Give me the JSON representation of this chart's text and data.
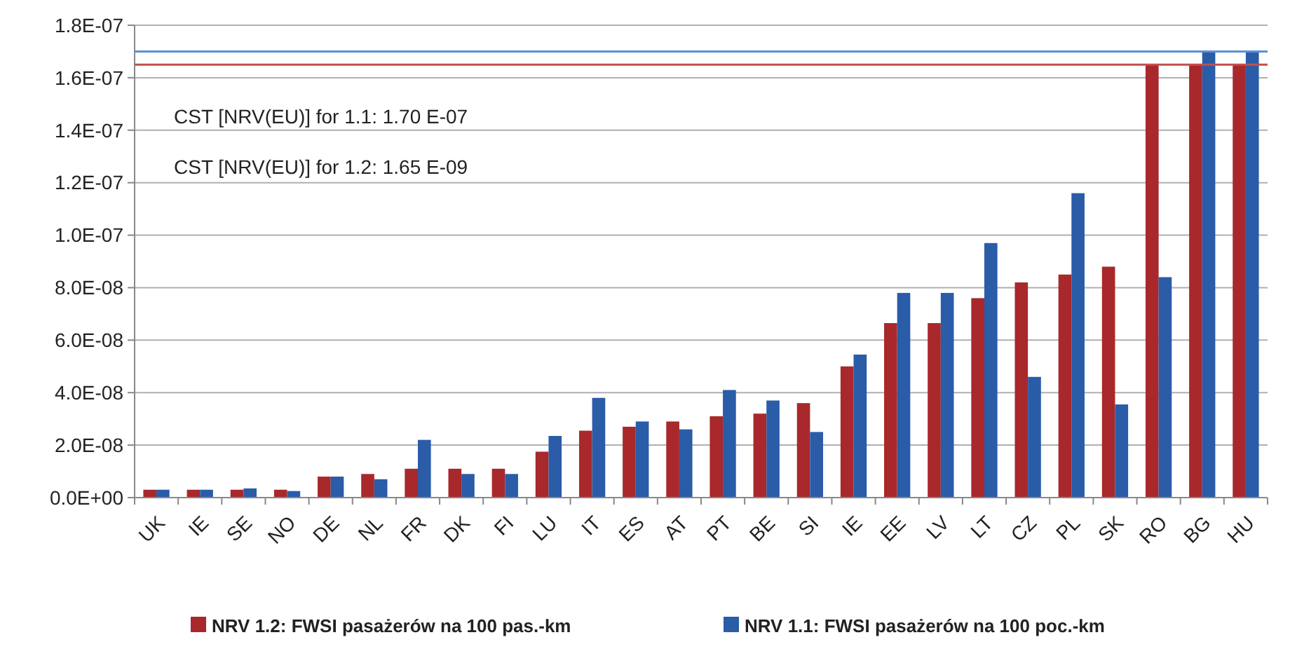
{
  "chart_data": {
    "type": "bar",
    "categories": [
      "UK",
      "IE",
      "SE",
      "NO",
      "DE",
      "NL",
      "FR",
      "DK",
      "FI",
      "LU",
      "IT",
      "ES",
      "AT",
      "PT",
      "BE",
      "SI",
      "IE",
      "EE",
      "LV",
      "LT",
      "CZ",
      "PL",
      "SK",
      "RO",
      "BG",
      "HU"
    ],
    "series": [
      {
        "name": "NRV 1.2: FWSI pasażerów na 100 pas.-km",
        "color": "#a8282b",
        "values": [
          3e-09,
          3e-09,
          3e-09,
          3e-09,
          8e-09,
          9e-09,
          1.1e-08,
          1.1e-08,
          1.1e-08,
          1.75e-08,
          2.55e-08,
          2.7e-08,
          2.9e-08,
          3.1e-08,
          3.2e-08,
          3.6e-08,
          5e-08,
          6.65e-08,
          6.65e-08,
          7.6e-08,
          8.2e-08,
          8.5e-08,
          8.8e-08,
          1.65e-07,
          1.65e-07,
          1.65e-07
        ]
      },
      {
        "name": "NRV 1.1: FWSI pasażerów na 100 poc.-km",
        "color": "#2a5ca8",
        "values": [
          3e-09,
          3e-09,
          3.5e-09,
          2.5e-09,
          8e-09,
          7e-09,
          2.2e-08,
          9e-09,
          9e-09,
          2.35e-08,
          3.8e-08,
          2.9e-08,
          2.6e-08,
          4.1e-08,
          3.7e-08,
          2.5e-08,
          5.45e-08,
          7.8e-08,
          7.8e-08,
          9.7e-08,
          4.6e-08,
          1.16e-07,
          3.55e-08,
          8.4e-08,
          1.7e-07,
          1.7e-07
        ]
      }
    ],
    "ylim": [
      0,
      1.8e-07
    ],
    "yticks": [
      {
        "value": 0,
        "label": "0.0E+00"
      },
      {
        "value": 2e-08,
        "label": "2.0E-08"
      },
      {
        "value": 4e-08,
        "label": "4.0E-08"
      },
      {
        "value": 6e-08,
        "label": "6.0E-08"
      },
      {
        "value": 8e-08,
        "label": "8.0E-08"
      },
      {
        "value": 1e-07,
        "label": "1.0E-07"
      },
      {
        "value": 1.2e-07,
        "label": "1.2E-07"
      },
      {
        "value": 1.4e-07,
        "label": "1.4E-07"
      },
      {
        "value": 1.6e-07,
        "label": "1.6E-07"
      },
      {
        "value": 1.8e-07,
        "label": "1.8E-07"
      }
    ],
    "ref_lines": [
      {
        "axis": "y",
        "value": 1.7e-07,
        "color": "#5b8fd6"
      },
      {
        "axis": "y",
        "value": 1.65e-07,
        "color": "#c0504d"
      }
    ],
    "annotations": [
      "CST [NRV(EU)] for 1.1: 1.70 E-07",
      "CST [NRV(EU)] for 1.2: 1.65 E-09"
    ],
    "grid": "y",
    "legend": "bottom"
  }
}
